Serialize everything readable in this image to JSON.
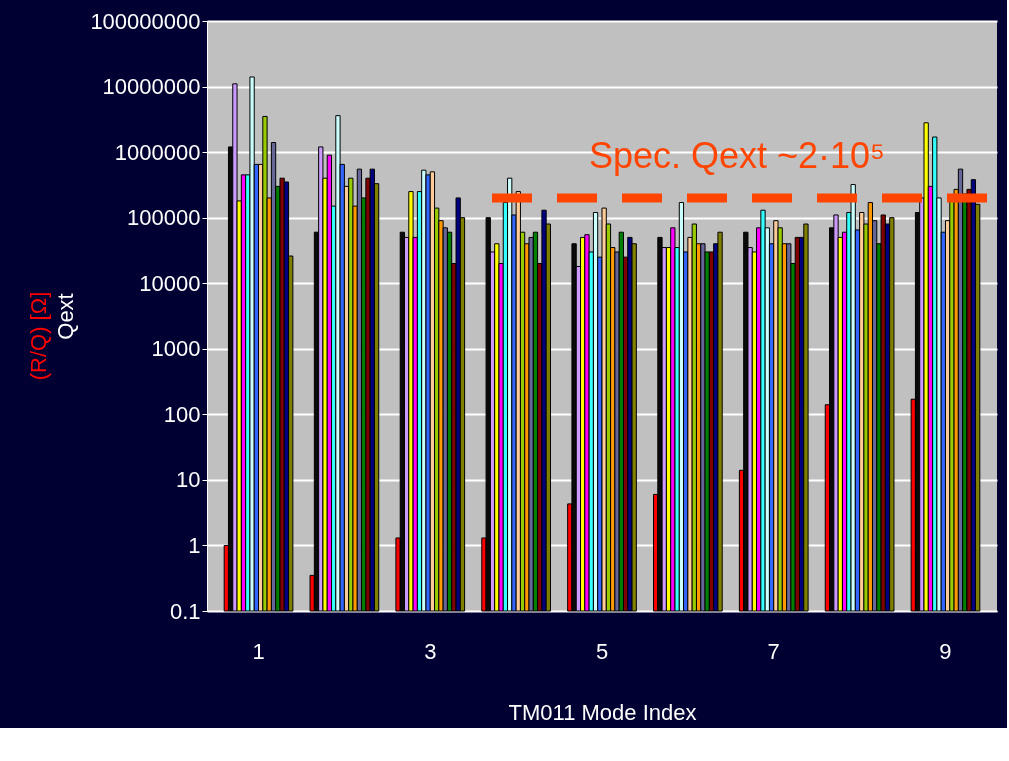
{
  "chart_data": {
    "type": "bar",
    "xlabel": "TM011 Mode Index",
    "ylabel": "Qext",
    "annotations": [
      "(R/Q) [Ω]"
    ],
    "categories": [
      "1",
      null,
      "3",
      null,
      "5",
      null,
      "7",
      null,
      "9"
    ],
    "log": true,
    "ylim": [
      0.1,
      100000000
    ],
    "yticks": [
      0.1,
      1,
      10,
      100,
      1000,
      10000,
      100000,
      1000000,
      10000000,
      100000000
    ],
    "grid": "y",
    "legend": false,
    "ref_lines": [
      {
        "axis": "y",
        "value": 200000,
        "label": "Spec. Qext ~2·10⁵",
        "color": "#ff4500",
        "line_style": "dashed"
      }
    ],
    "series": [
      {
        "color": "#ff0000",
        "values": [
          1,
          0.35,
          1.3,
          1.3,
          4.3,
          6,
          14,
          140,
          170
        ]
      },
      {
        "color": "#0a0a0a",
        "values": [
          1200000,
          60000,
          60000,
          100000,
          40000,
          50000,
          60000,
          70000,
          120000
        ]
      },
      {
        "color": "#cc99ff",
        "values": [
          11000000,
          1200000,
          50000,
          30000,
          18000,
          35000,
          35000,
          110000,
          200000
        ]
      },
      {
        "color": "#ffff00",
        "values": [
          180000,
          400000,
          250000,
          40000,
          50000,
          35000,
          30000,
          50000,
          2800000
        ]
      },
      {
        "color": "#ff00ff",
        "values": [
          450000,
          900000,
          50000,
          20000,
          55000,
          70000,
          70000,
          60000,
          300000
        ]
      },
      {
        "color": "#33ffff",
        "values": [
          450000,
          150000,
          250000,
          170000,
          30000,
          35000,
          130000,
          120000,
          1700000
        ]
      },
      {
        "color": "#ccffff",
        "values": [
          14000000,
          3600000,
          530000,
          400000,
          120000,
          170000,
          70000,
          320000,
          200000
        ]
      },
      {
        "color": "#3366ff",
        "values": [
          650000,
          650000,
          450000,
          110000,
          25000,
          30000,
          40000,
          65000,
          60000
        ]
      },
      {
        "color": "#ffcc99",
        "values": [
          650000,
          300000,
          500000,
          250000,
          140000,
          50000,
          90000,
          120000,
          90000
        ]
      },
      {
        "color": "#99cc00",
        "values": [
          3500000,
          400000,
          140000,
          60000,
          80000,
          80000,
          70000,
          80000,
          180000
        ]
      },
      {
        "color": "#ff9900",
        "values": [
          200000,
          150000,
          90000,
          40000,
          35000,
          40000,
          40000,
          170000,
          270000
        ]
      },
      {
        "color": "#666699",
        "values": [
          1400000,
          550000,
          70000,
          50000,
          30000,
          40000,
          40000,
          90000,
          550000
        ]
      },
      {
        "color": "#008000",
        "values": [
          300000,
          200000,
          60000,
          60000,
          60000,
          30000,
          20000,
          40000,
          230000
        ]
      },
      {
        "color": "#800000",
        "values": [
          400000,
          400000,
          20000,
          20000,
          25000,
          30000,
          50000,
          110000,
          270000
        ]
      },
      {
        "color": "#000080",
        "values": [
          350000,
          550000,
          200000,
          130000,
          50000,
          40000,
          50000,
          80000,
          380000
        ]
      },
      {
        "color": "#808000",
        "values": [
          26000,
          330000,
          100000,
          80000,
          40000,
          60000,
          80000,
          100000,
          160000
        ]
      }
    ]
  }
}
